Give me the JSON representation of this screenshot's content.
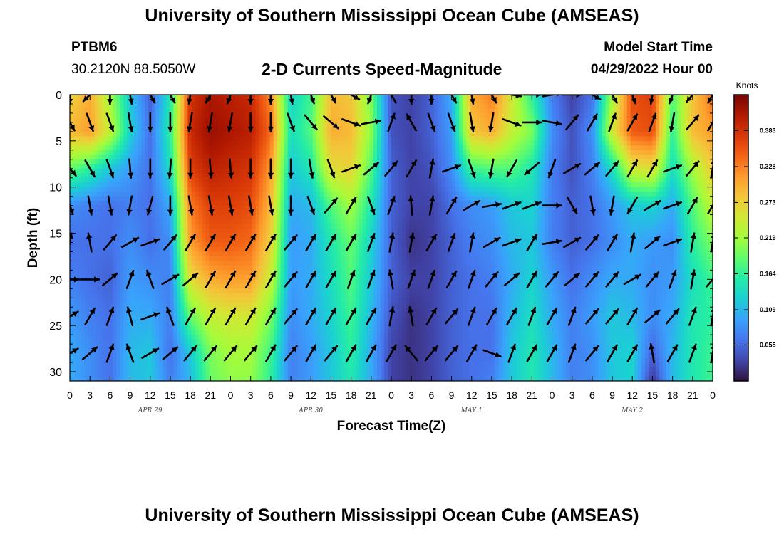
{
  "header": {
    "title": "University of Southern Mississippi Ocean Cube (AMSEAS)",
    "station": "PTBM6",
    "coords": "30.2120N  88.5050W",
    "subtitle": "2-D Currents Speed-Magnitude",
    "model_start_label": "Model Start Time",
    "model_start_value": "04/29/2022 Hour 00"
  },
  "footer": {
    "title": "University of Southern Mississippi Ocean Cube (AMSEAS)"
  },
  "chart_data": {
    "type": "heatmap",
    "xlabel": "Forecast Time(Z)",
    "ylabel": "Depth (ft)",
    "x_tick_labels": [
      "0",
      "3",
      "6",
      "9",
      "12",
      "15",
      "18",
      "21",
      "0",
      "3",
      "6",
      "9",
      "12",
      "15",
      "18",
      "21",
      "0",
      "3",
      "6",
      "9",
      "12",
      "15",
      "18",
      "21",
      "0",
      "3",
      "6",
      "9",
      "12",
      "15",
      "18",
      "21",
      "0"
    ],
    "date_labels": [
      "APR 29",
      "APR 30",
      "MAY 1",
      "MAY 2"
    ],
    "x_range_hours": [
      0,
      96
    ],
    "y_ticks": [
      0,
      5,
      10,
      15,
      20,
      25,
      30
    ],
    "y_range_ft": [
      0,
      31
    ],
    "y_inverted": true,
    "colorbar": {
      "unit": "Knots",
      "range": [
        0.0,
        0.438
      ],
      "tick_values": [
        0.055,
        0.109,
        0.164,
        0.219,
        0.273,
        0.328,
        0.383
      ],
      "tick_labels": [
        "0.055",
        "0.109",
        "0.164",
        "0.219",
        "0.273",
        "0.328",
        "0.383"
      ],
      "colors": [
        "#30123b",
        "#4145ab",
        "#4675ed",
        "#39a2fc",
        "#1bcfd4",
        "#24eca6",
        "#61fc6c",
        "#a4fc3b",
        "#d1e834",
        "#f3c63a",
        "#fe9b2d",
        "#f36315",
        "#d93807",
        "#b11901",
        "#7a0403"
      ]
    },
    "time_hours": [
      0,
      3,
      6,
      9,
      12,
      15,
      18,
      21,
      24,
      27,
      30,
      33,
      36,
      39,
      42,
      45,
      48,
      51,
      54,
      57,
      60,
      63,
      66,
      69,
      72,
      75,
      78,
      81,
      84,
      87,
      90,
      93,
      96
    ],
    "depths_ft": [
      0,
      4,
      8,
      12,
      16,
      20,
      24,
      28,
      31
    ],
    "speed_knots": [
      [
        0.27,
        0.3,
        0.22,
        0.12,
        0.05,
        0.15,
        0.38,
        0.41,
        0.4,
        0.39,
        0.32,
        0.13,
        0.17,
        0.29,
        0.28,
        0.2,
        0.04,
        0.03,
        0.05,
        0.1,
        0.3,
        0.33,
        0.25,
        0.16,
        0.07,
        0.03,
        0.06,
        0.22,
        0.36,
        0.37,
        0.18,
        0.28,
        0.34
      ],
      [
        0.29,
        0.31,
        0.24,
        0.13,
        0.06,
        0.16,
        0.39,
        0.42,
        0.41,
        0.4,
        0.34,
        0.14,
        0.18,
        0.3,
        0.29,
        0.21,
        0.04,
        0.03,
        0.05,
        0.09,
        0.28,
        0.3,
        0.24,
        0.2,
        0.08,
        0.04,
        0.08,
        0.25,
        0.35,
        0.36,
        0.16,
        0.29,
        0.31
      ],
      [
        0.19,
        0.16,
        0.12,
        0.09,
        0.06,
        0.14,
        0.37,
        0.4,
        0.39,
        0.38,
        0.31,
        0.12,
        0.15,
        0.26,
        0.27,
        0.18,
        0.05,
        0.03,
        0.04,
        0.08,
        0.17,
        0.18,
        0.18,
        0.15,
        0.07,
        0.04,
        0.07,
        0.14,
        0.25,
        0.26,
        0.14,
        0.22,
        0.28
      ],
      [
        0.08,
        0.07,
        0.06,
        0.07,
        0.06,
        0.1,
        0.33,
        0.37,
        0.37,
        0.36,
        0.29,
        0.1,
        0.11,
        0.18,
        0.22,
        0.15,
        0.05,
        0.03,
        0.03,
        0.06,
        0.08,
        0.09,
        0.12,
        0.13,
        0.07,
        0.05,
        0.06,
        0.09,
        0.12,
        0.13,
        0.1,
        0.18,
        0.24
      ],
      [
        0.06,
        0.06,
        0.06,
        0.08,
        0.06,
        0.08,
        0.31,
        0.35,
        0.35,
        0.34,
        0.27,
        0.09,
        0.1,
        0.15,
        0.19,
        0.13,
        0.05,
        0.02,
        0.03,
        0.05,
        0.07,
        0.08,
        0.11,
        0.12,
        0.07,
        0.05,
        0.06,
        0.08,
        0.1,
        0.09,
        0.08,
        0.16,
        0.2
      ],
      [
        0.07,
        0.06,
        0.05,
        0.09,
        0.08,
        0.07,
        0.26,
        0.3,
        0.31,
        0.31,
        0.24,
        0.09,
        0.1,
        0.14,
        0.18,
        0.12,
        0.05,
        0.03,
        0.03,
        0.05,
        0.06,
        0.07,
        0.1,
        0.13,
        0.09,
        0.06,
        0.08,
        0.1,
        0.1,
        0.08,
        0.09,
        0.14,
        0.17
      ],
      [
        0.09,
        0.07,
        0.06,
        0.1,
        0.1,
        0.07,
        0.19,
        0.24,
        0.25,
        0.25,
        0.2,
        0.08,
        0.1,
        0.13,
        0.17,
        0.11,
        0.04,
        0.02,
        0.03,
        0.05,
        0.06,
        0.06,
        0.11,
        0.14,
        0.1,
        0.07,
        0.09,
        0.12,
        0.11,
        0.08,
        0.1,
        0.15,
        0.16
      ],
      [
        0.1,
        0.08,
        0.06,
        0.11,
        0.12,
        0.06,
        0.12,
        0.2,
        0.22,
        0.22,
        0.17,
        0.07,
        0.09,
        0.12,
        0.16,
        0.1,
        0.03,
        0.02,
        0.03,
        0.05,
        0.06,
        0.06,
        0.12,
        0.15,
        0.11,
        0.07,
        0.08,
        0.12,
        0.13,
        0.05,
        0.11,
        0.15,
        0.17
      ],
      [
        0.1,
        0.08,
        0.06,
        0.11,
        0.12,
        0.07,
        0.11,
        0.19,
        0.21,
        0.21,
        0.16,
        0.07,
        0.09,
        0.12,
        0.15,
        0.1,
        0.03,
        0.02,
        0.03,
        0.05,
        0.06,
        0.07,
        0.12,
        0.15,
        0.11,
        0.07,
        0.08,
        0.12,
        0.13,
        0.02,
        0.11,
        0.15,
        0.17
      ]
    ],
    "arrow_depths_ft": [
      0,
      3,
      8,
      12,
      16,
      20,
      24,
      28
    ],
    "arrow_direction_deg": [
      [
        180,
        225,
        180,
        170,
        150,
        150,
        190,
        210,
        200,
        180,
        180,
        170,
        160,
        150,
        120,
        200,
        330,
        180,
        180,
        150,
        170,
        150,
        100,
        90,
        80,
        90,
        120,
        150,
        160,
        190,
        200,
        220,
        210
      ],
      [
        150,
        160,
        160,
        170,
        180,
        180,
        190,
        190,
        190,
        180,
        180,
        160,
        140,
        130,
        110,
        80,
        20,
        330,
        160,
        160,
        170,
        190,
        110,
        90,
        100,
        40,
        30,
        20,
        30,
        20,
        190,
        40,
        30
      ],
      [
        140,
        150,
        160,
        175,
        180,
        185,
        180,
        175,
        175,
        180,
        180,
        180,
        170,
        160,
        70,
        50,
        40,
        30,
        10,
        70,
        160,
        190,
        210,
        230,
        200,
        60,
        50,
        40,
        30,
        30,
        70,
        40,
        10
      ],
      [
        160,
        170,
        170,
        190,
        195,
        180,
        170,
        170,
        170,
        170,
        170,
        180,
        160,
        40,
        30,
        160,
        20,
        355,
        10,
        30,
        60,
        80,
        70,
        70,
        90,
        150,
        170,
        190,
        210,
        60,
        70,
        30,
        30
      ],
      [
        10,
        350,
        40,
        60,
        70,
        40,
        30,
        30,
        30,
        30,
        30,
        40,
        30,
        30,
        30,
        20,
        10,
        10,
        30,
        20,
        10,
        60,
        70,
        30,
        80,
        60,
        40,
        30,
        10,
        50,
        70,
        10,
        10
      ],
      [
        90,
        90,
        50,
        20,
        340,
        60,
        50,
        30,
        30,
        30,
        30,
        40,
        30,
        30,
        20,
        20,
        350,
        20,
        20,
        30,
        20,
        40,
        50,
        30,
        40,
        50,
        40,
        40,
        60,
        40,
        20,
        10,
        40
      ],
      [
        60,
        30,
        20,
        345,
        70,
        340,
        30,
        30,
        30,
        30,
        30,
        40,
        30,
        30,
        30,
        30,
        10,
        350,
        30,
        40,
        20,
        30,
        30,
        20,
        30,
        20,
        40,
        40,
        30,
        50,
        40,
        20,
        10
      ],
      [
        60,
        50,
        20,
        340,
        60,
        50,
        40,
        40,
        40,
        40,
        30,
        40,
        30,
        40,
        30,
        30,
        30,
        320,
        40,
        40,
        30,
        110,
        20,
        30,
        30,
        20,
        40,
        30,
        30,
        350,
        30,
        20,
        10
      ]
    ]
  }
}
